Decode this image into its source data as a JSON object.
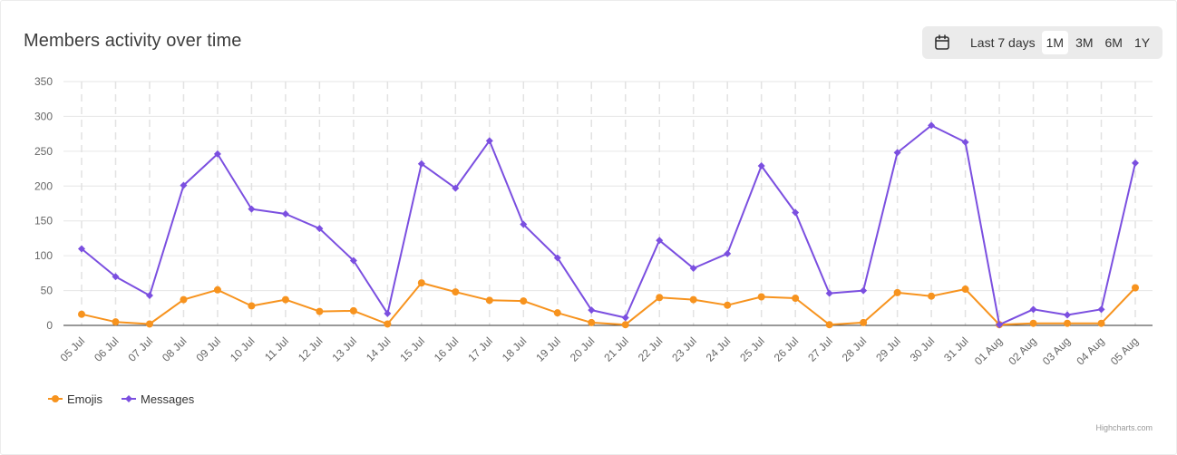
{
  "header": {
    "title": "Members activity over time",
    "calendar_icon": "calendar-icon",
    "range_options": [
      {
        "label": "Last 7 days",
        "active": false
      },
      {
        "label": "1M",
        "active": true
      },
      {
        "label": "3M",
        "active": false
      },
      {
        "label": "6M",
        "active": false
      },
      {
        "label": "1Y",
        "active": false
      }
    ]
  },
  "credits": "Highcharts.com",
  "colors": {
    "emojis": "#f7931e",
    "messages": "#7b4fe0"
  },
  "chart_data": {
    "type": "line",
    "categories": [
      "05 Jul",
      "06 Jul",
      "07 Jul",
      "08 Jul",
      "09 Jul",
      "10 Jul",
      "11 Jul",
      "12 Jul",
      "13 Jul",
      "14 Jul",
      "15 Jul",
      "16 Jul",
      "17 Jul",
      "18 Jul",
      "19 Jul",
      "20 Jul",
      "21 Jul",
      "22 Jul",
      "23 Jul",
      "24 Jul",
      "25 Jul",
      "26 Jul",
      "27 Jul",
      "28 Jul",
      "29 Jul",
      "30 Jul",
      "31 Jul",
      "01 Aug",
      "02 Aug",
      "03 Aug",
      "04 Aug",
      "05 Aug"
    ],
    "series": [
      {
        "name": "Emojis",
        "marker": "circle",
        "values": [
          16,
          5,
          2,
          37,
          51,
          28,
          37,
          20,
          21,
          2,
          61,
          48,
          36,
          35,
          18,
          4,
          1,
          40,
          37,
          29,
          41,
          39,
          1,
          4,
          47,
          42,
          52,
          1,
          3,
          3,
          3,
          54
        ]
      },
      {
        "name": "Messages",
        "marker": "diamond",
        "values": [
          110,
          70,
          43,
          201,
          246,
          167,
          160,
          139,
          93,
          17,
          232,
          197,
          265,
          145,
          97,
          22,
          11,
          122,
          82,
          103,
          229,
          162,
          46,
          50,
          248,
          287,
          263,
          1,
          23,
          15,
          23,
          233
        ]
      }
    ],
    "yticks": [
      0,
      50,
      100,
      150,
      200,
      250,
      300,
      350
    ],
    "ylim": [
      0,
      350
    ],
    "grid": true,
    "legend": "bottom-left"
  }
}
